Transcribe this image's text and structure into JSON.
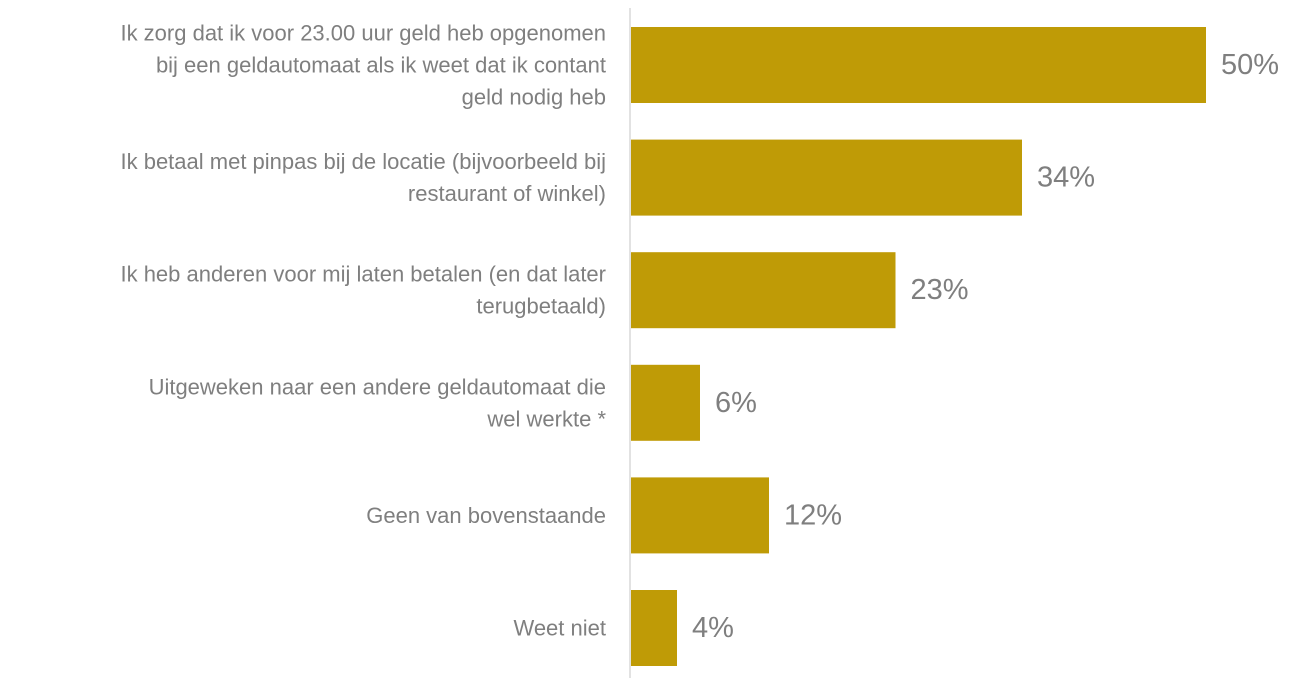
{
  "chart_data": {
    "type": "bar",
    "orientation": "horizontal",
    "categories": [
      [
        "Ik zorg dat ik voor 23.00 uur geld heb opgenomen",
        "bij een geldautomaat als ik weet dat ik contant",
        "geld nodig heb"
      ],
      [
        "Ik betaal met pinpas bij de locatie (bijvoorbeeld bij",
        "restaurant of winkel)"
      ],
      [
        "Ik heb anderen voor mij laten betalen (en dat later",
        "terugbetaald)"
      ],
      [
        "Uitgeweken naar een andere geldautomaat die",
        "wel werkte *"
      ],
      [
        "Geen van bovenstaande"
      ],
      [
        "Weet niet"
      ]
    ],
    "values": [
      50,
      34,
      23,
      6,
      12,
      4
    ],
    "value_labels": [
      "50%",
      "34%",
      "23%",
      "6%",
      "12%",
      "4%"
    ],
    "unit": "%",
    "xlim": [
      0,
      50
    ],
    "title": "",
    "xlabel": "",
    "ylabel": "",
    "grid": false,
    "legend": "none",
    "bar_color": "#bf9b06",
    "label_color": "#7f7f7f",
    "axis_color": "#d9d9d9"
  }
}
